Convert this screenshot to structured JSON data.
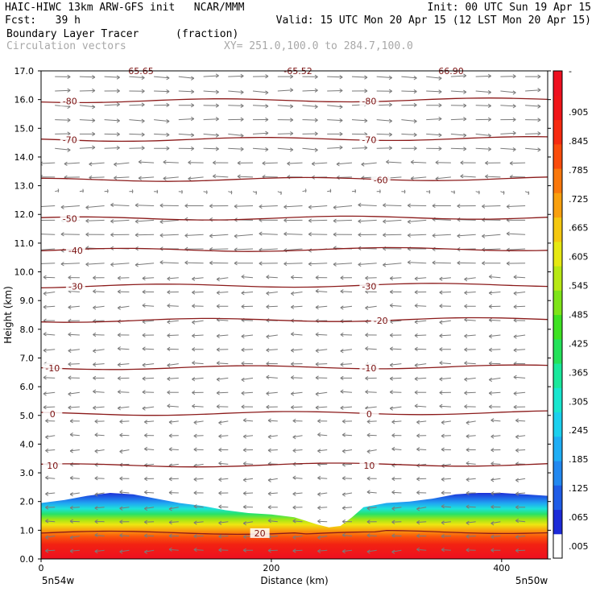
{
  "header": {
    "line1_left": "HAIC-HIWC 13km ARW-GFS init   NCAR/MMM",
    "line1_right": "Init: 00 UTC Sun 19 Apr 15",
    "line2_left": "Fcst:   39 h",
    "line2_right": "Valid: 15 UTC Mon 20 Apr 15 (12 LST Mon 20 Apr 15)",
    "field_name": "Boundary Layer Tracer",
    "field_units": "(fraction)",
    "vector_label": "Circulation vectors",
    "cross_section": "XY= 251.0,100.0 to 284.7,100.0"
  },
  "chart_data": {
    "type": "heatmap",
    "subtype": "vertical cross-section",
    "xlabel": "Distance (km)",
    "ylabel": "Height (km)",
    "xlim": [
      0,
      440
    ],
    "ylim": [
      0,
      17
    ],
    "x_ticks": [
      "0",
      "200",
      "400"
    ],
    "x_tick_values": [
      0,
      200,
      400
    ],
    "y_ticks": [
      "0.0",
      "1.0",
      "2.0",
      "3.0",
      "4.0",
      "5.0",
      "6.0",
      "7.0",
      "8.0",
      "9.0",
      "10.0",
      "11.0",
      "12.0",
      "13.0",
      "14.0",
      "15.0",
      "16.0",
      "17.0"
    ],
    "endpoint_left": "5n54w",
    "endpoint_right": "5n50w",
    "top_labels": [
      "65.65",
      "-65.52",
      "66.90"
    ],
    "colorbar": {
      "labels": [
        ".005",
        ".065",
        ".125",
        ".185",
        ".245",
        ".305",
        ".365",
        ".425",
        ".485",
        ".545",
        ".605",
        ".665",
        ".725",
        ".785",
        ".845",
        ".905",
        "-"
      ],
      "colors": [
        "#ffffff",
        "#1c2ad8",
        "#1f5ce6",
        "#2288f0",
        "#1faef5",
        "#1cd0ee",
        "#18e6cf",
        "#1ae89c",
        "#24e25a",
        "#3ee222",
        "#7ee418",
        "#b8e814",
        "#e6e812",
        "#f5c810",
        "#f9a00e",
        "#fa780c",
        "#fa4c0c",
        "#f62a10",
        "#f01418",
        "#ee1020"
      ]
    },
    "boundary_layer_top_km": {
      "x": [
        0,
        20,
        40,
        60,
        80,
        100,
        120,
        140,
        160,
        180,
        200,
        220,
        240,
        250,
        260,
        270,
        280,
        300,
        320,
        340,
        360,
        380,
        400,
        420,
        440
      ],
      "y": [
        1.95,
        2.05,
        2.2,
        2.3,
        2.25,
        2.1,
        1.95,
        1.85,
        1.7,
        1.6,
        1.55,
        1.45,
        1.2,
        1.1,
        1.15,
        1.45,
        1.8,
        1.95,
        2.0,
        2.1,
        2.25,
        2.3,
        2.3,
        2.25,
        2.2
      ]
    },
    "temperature_contours": [
      {
        "label": "20",
        "value": 20,
        "height_km": 0.9,
        "label_x_km": [
          190
        ]
      },
      {
        "label": "10",
        "value": 10,
        "height_km": 3.25,
        "label_x_km": [
          10,
          285
        ]
      },
      {
        "label": "0",
        "value": 0,
        "height_km": 5.05,
        "label_x_km": [
          10,
          285
        ]
      },
      {
        "label": "-10",
        "value": -10,
        "height_km": 6.65,
        "label_x_km": [
          10,
          285
        ]
      },
      {
        "label": "-20",
        "value": -20,
        "height_km": 8.3,
        "label_x_km": [
          295
        ]
      },
      {
        "label": "-30",
        "value": -30,
        "height_km": 9.5,
        "label_x_km": [
          30,
          285
        ]
      },
      {
        "label": "-40",
        "value": -40,
        "height_km": 10.75,
        "label_x_km": [
          30
        ]
      },
      {
        "label": "-50",
        "value": -50,
        "height_km": 11.85,
        "label_x_km": [
          25
        ]
      },
      {
        "label": "-60",
        "value": -60,
        "height_km": 13.2,
        "label_x_km": [
          295
        ]
      },
      {
        "label": "-70",
        "value": -70,
        "height_km": 14.6,
        "label_x_km": [
          25,
          285
        ]
      },
      {
        "label": "-80",
        "value": -80,
        "height_km": 15.95,
        "label_x_km": [
          25,
          285
        ]
      }
    ],
    "vectors": "westward circulation vectors on a regular grid, strongest between 10 and 13 km",
    "grid": false
  }
}
